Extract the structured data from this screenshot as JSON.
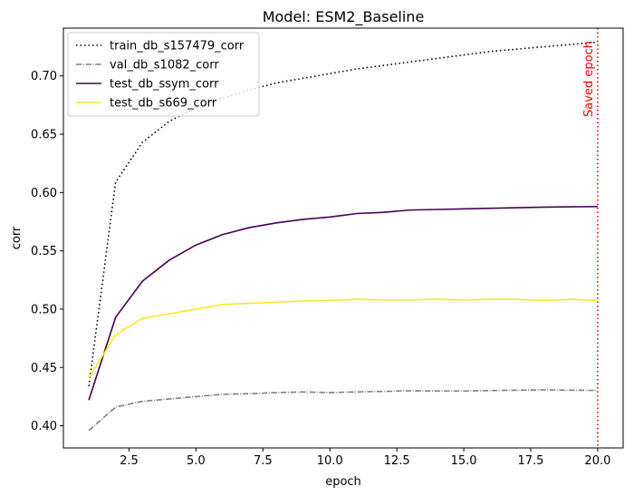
{
  "chart_data": {
    "type": "line",
    "title": "Model: ESM2_Baseline",
    "xlabel": "epoch",
    "ylabel": "corr",
    "xlim": [
      0.05,
      20.95
    ],
    "ylim": [
      0.381,
      0.741
    ],
    "xticks": [
      2.5,
      5.0,
      7.5,
      10.0,
      12.5,
      15.0,
      17.5,
      20.0
    ],
    "xtick_labels": [
      "2.5",
      "5.0",
      "7.5",
      "10.0",
      "12.5",
      "15.0",
      "17.5",
      "20.0"
    ],
    "yticks": [
      0.4,
      0.45,
      0.5,
      0.55,
      0.6,
      0.65,
      0.7
    ],
    "ytick_labels": [
      "0.40",
      "0.45",
      "0.50",
      "0.55",
      "0.60",
      "0.65",
      "0.70"
    ],
    "grid": false,
    "legend_position": "top-left",
    "x": [
      1,
      2,
      3,
      4,
      5,
      6,
      7,
      8,
      9,
      10,
      11,
      12,
      13,
      14,
      15,
      16,
      17,
      18,
      19,
      20
    ],
    "series": [
      {
        "name": "train_db_s157479_corr",
        "color": "#000000",
        "dash": "dotted",
        "values": [
          0.434,
          0.609,
          0.643,
          0.661,
          0.673,
          0.681,
          0.688,
          0.694,
          0.698,
          0.702,
          0.706,
          0.709,
          0.712,
          0.715,
          0.718,
          0.721,
          0.723,
          0.725,
          0.727,
          0.729
        ]
      },
      {
        "name": "val_db_s1082_corr",
        "color": "#808080",
        "dash": "dashdot",
        "values": [
          0.396,
          0.416,
          0.421,
          0.423,
          0.425,
          0.427,
          0.4275,
          0.4285,
          0.429,
          0.4285,
          0.429,
          0.4295,
          0.43,
          0.4298,
          0.4298,
          0.4302,
          0.4305,
          0.4308,
          0.4305,
          0.4303
        ]
      },
      {
        "name": "test_db_ssym_corr",
        "color": "#440154",
        "dash": "solid",
        "values": [
          0.422,
          0.493,
          0.524,
          0.542,
          0.555,
          0.564,
          0.57,
          0.574,
          0.577,
          0.579,
          0.582,
          0.583,
          0.585,
          0.5855,
          0.586,
          0.5865,
          0.587,
          0.5875,
          0.5878,
          0.588
        ]
      },
      {
        "name": "test_db_s669_corr",
        "color": "#fde725",
        "dash": "solid",
        "values": [
          0.441,
          0.478,
          0.492,
          0.496,
          0.5,
          0.504,
          0.505,
          0.506,
          0.507,
          0.5075,
          0.5085,
          0.508,
          0.508,
          0.5085,
          0.508,
          0.5085,
          0.5085,
          0.5075,
          0.5085,
          0.5075
        ]
      }
    ],
    "annotations": [
      {
        "text": "Saved epoch",
        "x": 20,
        "color": "#ff0000",
        "line_style": "dotted"
      }
    ]
  }
}
